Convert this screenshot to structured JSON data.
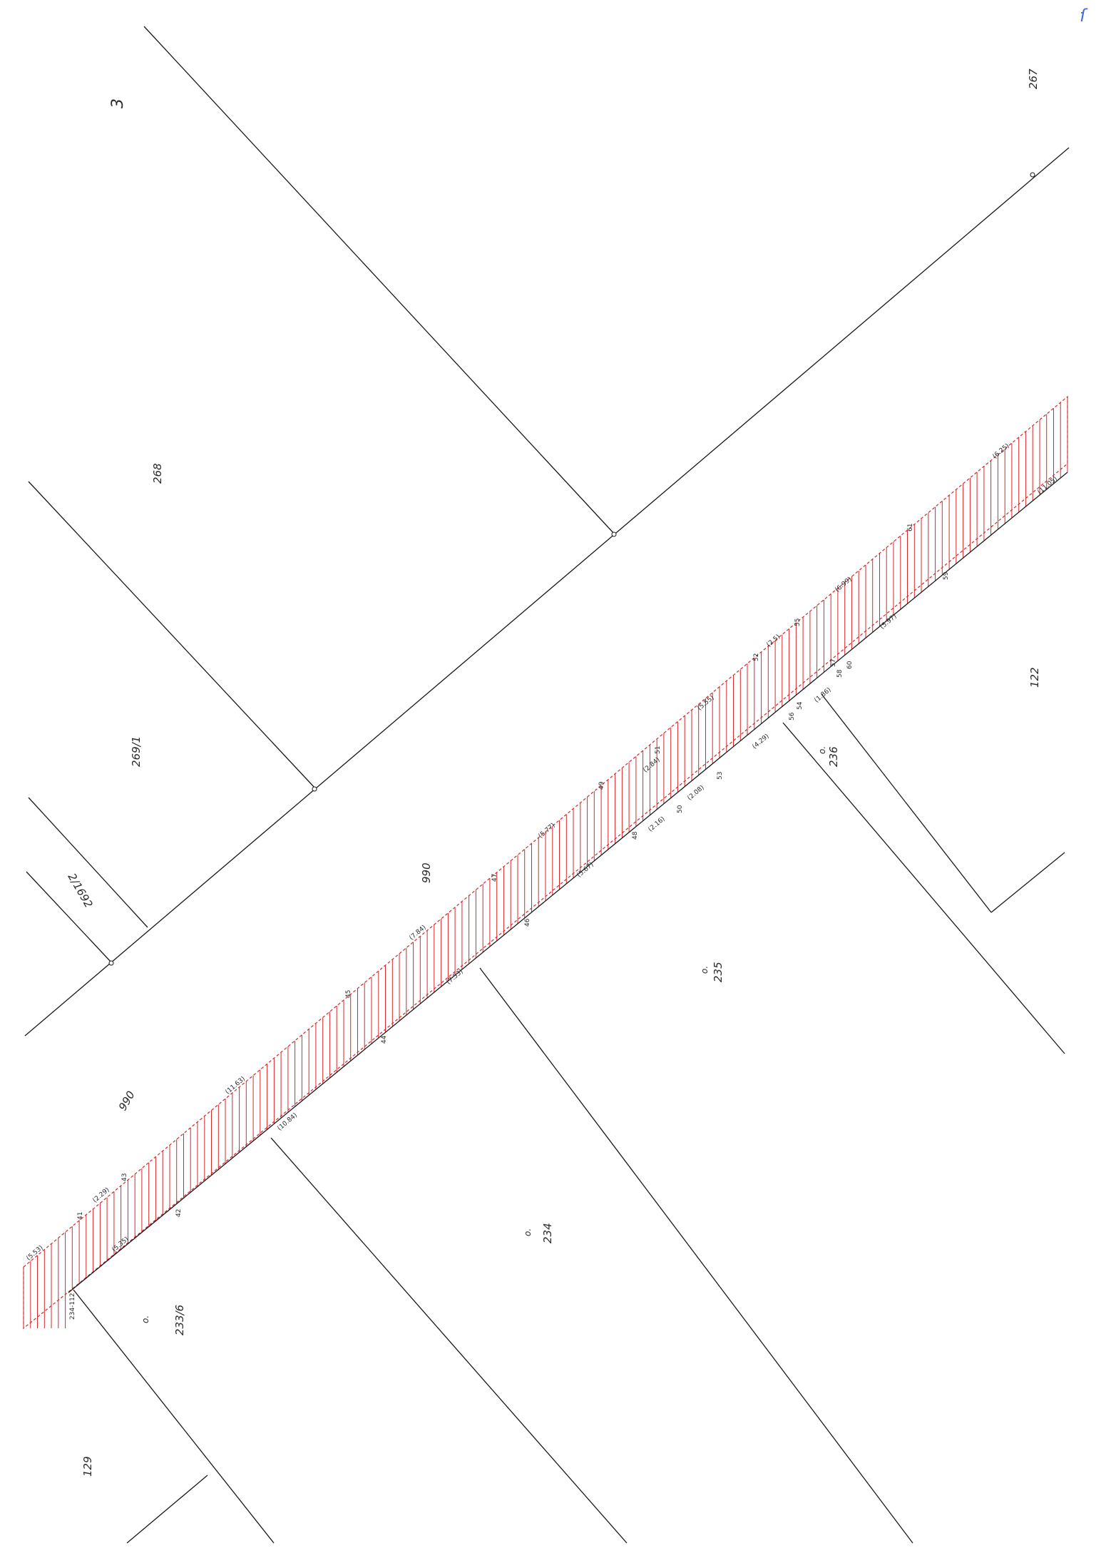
{
  "colors": {
    "line": "#1a1a1a",
    "hatch": "#d8282a",
    "blue_mark": "#3a6fd8",
    "paper": "#ffffff"
  },
  "page": {
    "sheet_number": "3",
    "corner_mark": "ſ"
  },
  "parcels": [
    {
      "id": "p267",
      "label": "267"
    },
    {
      "id": "p268",
      "label": "268"
    },
    {
      "id": "p269-1",
      "label": "269/1"
    },
    {
      "id": "p2-1692",
      "label": "2/1692"
    },
    {
      "id": "p990-a",
      "label": "990"
    },
    {
      "id": "p990-b",
      "label": "990"
    },
    {
      "id": "p122",
      "label": "122"
    },
    {
      "id": "p236",
      "label": "236"
    },
    {
      "id": "p235",
      "label": "235"
    },
    {
      "id": "p234",
      "label": "234"
    },
    {
      "id": "p233-6",
      "label": "233/6"
    },
    {
      "id": "p129",
      "label": "129"
    }
  ],
  "measurements": [
    "(5.53)",
    "(2.29)",
    "(5.35)",
    "(11.63)",
    "(10.84)",
    "(7.84)",
    "(7.53)",
    "(5.77)",
    "(5.67)",
    "(2.84)",
    "(2.16)",
    "(2.08)",
    "(5.55)",
    "(4.29)",
    "(2.5)",
    "(1.86)",
    "(6.99)",
    "(5.97)",
    "(6.25)",
    "(11.05)"
  ],
  "points": [
    "234-112",
    "41",
    "42",
    "43",
    "44",
    "45",
    "46",
    "47",
    "48",
    "49",
    "50",
    "51",
    "52",
    "53",
    "54",
    "55",
    "56",
    "57",
    "58",
    "59",
    "60",
    "61"
  ]
}
